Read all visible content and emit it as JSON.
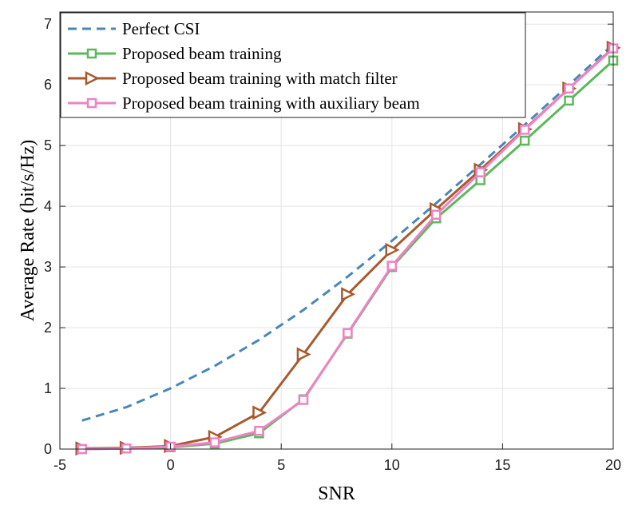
{
  "chart_data": {
    "type": "line",
    "title": "",
    "xlabel": "SNR",
    "ylabel": "Average Rate (bit/s/Hz)",
    "xlim": [
      -5,
      20
    ],
    "ylim": [
      0,
      7.2
    ],
    "xticks": [
      -5,
      0,
      5,
      10,
      15,
      20
    ],
    "yticks": [
      0,
      1,
      2,
      3,
      4,
      5,
      6,
      7
    ],
    "xtick_labels": [
      "-5",
      "0",
      "5",
      "10",
      "15",
      "20"
    ],
    "ytick_labels": [
      "0",
      "1",
      "2",
      "3",
      "4",
      "5",
      "6",
      "7"
    ],
    "grid": true,
    "legend_position": "top-left",
    "series": [
      {
        "name": "Perfect CSI",
        "color": "#4a86b8",
        "style": "dashed",
        "marker": "none",
        "x": [
          -4,
          -2,
          0,
          2,
          4,
          6,
          8,
          10,
          12,
          14,
          16,
          18,
          20
        ],
        "y": [
          0.47,
          0.69,
          1.0,
          1.37,
          1.8,
          2.29,
          2.84,
          3.43,
          4.05,
          4.69,
          5.34,
          6.0,
          6.67
        ]
      },
      {
        "name": "Proposed beam training",
        "color": "#5cb85c",
        "style": "solid",
        "marker": "square",
        "x": [
          -4,
          -2,
          0,
          2,
          4,
          6,
          8,
          10,
          12,
          14,
          16,
          18,
          20
        ],
        "y": [
          0.0,
          0.01,
          0.03,
          0.09,
          0.26,
          0.82,
          1.9,
          3.0,
          3.8,
          4.43,
          5.08,
          5.74,
          6.4
        ]
      },
      {
        "name": "Proposed beam training with match filter",
        "color": "#a85a2e",
        "style": "solid",
        "marker": "triangle-right",
        "x": [
          -4,
          -2,
          0,
          2,
          4,
          6,
          8,
          10,
          12,
          14,
          16,
          18,
          20
        ],
        "y": [
          0.01,
          0.02,
          0.05,
          0.2,
          0.6,
          1.56,
          2.55,
          3.28,
          3.95,
          4.6,
          5.27,
          5.94,
          6.61
        ]
      },
      {
        "name": "Proposed beam training with auxiliary beam",
        "color": "#ee82c6",
        "style": "solid",
        "marker": "square",
        "x": [
          -4,
          -2,
          0,
          2,
          4,
          6,
          8,
          10,
          12,
          14,
          16,
          18,
          20
        ],
        "y": [
          0.0,
          0.01,
          0.04,
          0.11,
          0.3,
          0.81,
          1.91,
          3.02,
          3.86,
          4.56,
          5.26,
          5.94,
          6.6
        ]
      }
    ]
  }
}
